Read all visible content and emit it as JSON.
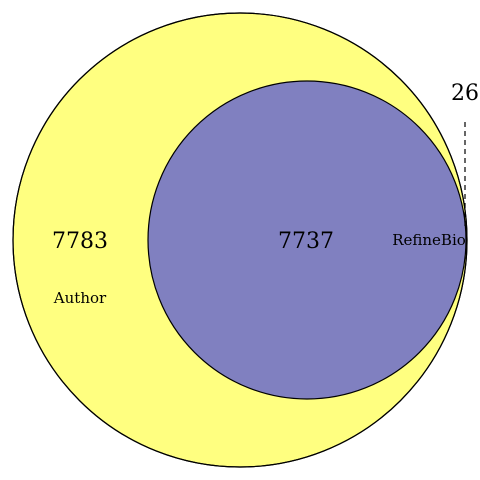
{
  "venn": {
    "sets": [
      {
        "name": "Author",
        "color": "#ffff80"
      },
      {
        "name": "RefineBio",
        "color": "#8080c0"
      }
    ],
    "regions": {
      "author_only": "7783",
      "intersection": "7737",
      "refinebio_only": "26"
    }
  }
}
